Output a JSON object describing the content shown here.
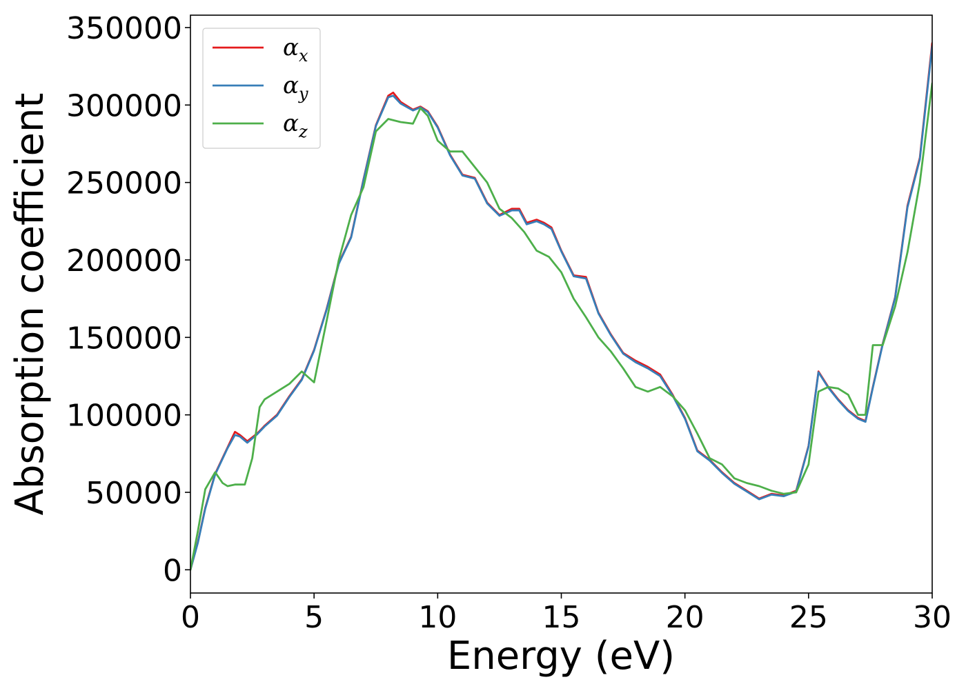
{
  "chart_data": {
    "type": "line",
    "title": "",
    "xlabel": "Energy (eV)",
    "ylabel": "Absorption coefficient",
    "xlim": [
      0,
      30
    ],
    "ylim": [
      -15000,
      358000
    ],
    "xticks": [
      0,
      5,
      10,
      15,
      20,
      25,
      30
    ],
    "xtick_labels": [
      "0",
      "5",
      "10",
      "15",
      "20",
      "25",
      "30"
    ],
    "yticks": [
      0,
      50000,
      100000,
      150000,
      200000,
      250000,
      300000,
      350000
    ],
    "ytick_labels": [
      "0",
      "50000",
      "100000",
      "150000",
      "200000",
      "250000",
      "300000",
      "350000"
    ],
    "grid": false,
    "legend_position": "top-left",
    "series": [
      {
        "name": "α",
        "name_subscript": "x",
        "color": "#e41a1c",
        "x": [
          0,
          0.3,
          0.6,
          1.0,
          1.5,
          1.8,
          2.0,
          2.3,
          2.7,
          3.0,
          3.5,
          4.0,
          4.5,
          5.0,
          5.5,
          6.0,
          6.5,
          7.0,
          7.5,
          8.0,
          8.2,
          8.5,
          9.0,
          9.3,
          9.6,
          10.0,
          10.5,
          11.0,
          11.5,
          12.0,
          12.5,
          13.0,
          13.3,
          13.6,
          14.0,
          14.3,
          14.6,
          15.0,
          15.5,
          16.0,
          16.5,
          17.0,
          17.5,
          18.0,
          18.5,
          19.0,
          19.5,
          20.0,
          20.5,
          21.0,
          21.5,
          22.0,
          22.5,
          23.0,
          23.5,
          24.0,
          24.5,
          25.0,
          25.4,
          25.8,
          26.2,
          26.6,
          27.0,
          27.3,
          27.6,
          28.0,
          28.5,
          29.0,
          29.5,
          30.0
        ],
        "y": [
          0,
          18000,
          40000,
          62000,
          79000,
          89000,
          87000,
          83000,
          88000,
          93000,
          100000,
          112000,
          123000,
          142000,
          168000,
          198000,
          215000,
          252000,
          287000,
          306000,
          308000,
          302000,
          297000,
          299000,
          296000,
          286000,
          268000,
          255000,
          253000,
          237000,
          229000,
          233000,
          233000,
          224000,
          226000,
          224000,
          221000,
          206000,
          190000,
          189000,
          166000,
          152000,
          140000,
          135000,
          131000,
          126000,
          113000,
          98000,
          77000,
          71000,
          63000,
          56000,
          51000,
          46000,
          49000,
          48000,
          51000,
          80000,
          128000,
          118000,
          110000,
          103000,
          98000,
          96000,
          118000,
          146000,
          176000,
          235000,
          266000,
          340000
        ]
      },
      {
        "name": "α",
        "name_subscript": "y",
        "color": "#377eb8",
        "x": [
          0,
          0.3,
          0.6,
          1.0,
          1.5,
          1.8,
          2.0,
          2.3,
          2.7,
          3.0,
          3.5,
          4.0,
          4.5,
          5.0,
          5.5,
          6.0,
          6.5,
          7.0,
          7.5,
          8.0,
          8.2,
          8.5,
          9.0,
          9.3,
          9.6,
          10.0,
          10.5,
          11.0,
          11.5,
          12.0,
          12.5,
          13.0,
          13.3,
          13.6,
          14.0,
          14.3,
          14.6,
          15.0,
          15.5,
          16.0,
          16.5,
          17.0,
          17.5,
          18.0,
          18.5,
          19.0,
          19.5,
          20.0,
          20.5,
          21.0,
          21.5,
          22.0,
          22.5,
          23.0,
          23.5,
          24.0,
          24.5,
          25.0,
          25.4,
          25.8,
          26.2,
          26.6,
          27.0,
          27.3,
          27.6,
          28.0,
          28.5,
          29.0,
          29.5,
          30.0
        ],
        "y": [
          0,
          17500,
          39500,
          61500,
          78500,
          87000,
          86000,
          82000,
          87500,
          92500,
          99500,
          111500,
          122500,
          141500,
          167500,
          197500,
          214500,
          251500,
          286500,
          305000,
          306000,
          301000,
          296500,
          298500,
          295500,
          285500,
          267500,
          254500,
          252500,
          236500,
          228500,
          232000,
          232000,
          223000,
          225000,
          223000,
          220000,
          205500,
          189500,
          188000,
          165500,
          151500,
          139500,
          134000,
          130000,
          125000,
          112500,
          97500,
          76500,
          70500,
          62500,
          55500,
          50500,
          45500,
          48500,
          47500,
          50500,
          79500,
          127500,
          117500,
          109500,
          102500,
          97500,
          95500,
          117500,
          145500,
          175500,
          234000,
          265000,
          338000
        ]
      },
      {
        "name": "α",
        "name_subscript": "z",
        "color": "#4daf4a",
        "x": [
          0,
          0.3,
          0.6,
          1.0,
          1.3,
          1.5,
          1.8,
          2.2,
          2.5,
          2.8,
          3.0,
          3.5,
          4.0,
          4.5,
          5.0,
          5.5,
          6.0,
          6.5,
          7.0,
          7.5,
          8.0,
          8.5,
          9.0,
          9.3,
          9.6,
          10.0,
          10.5,
          11.0,
          11.5,
          12.0,
          12.5,
          13.0,
          13.5,
          14.0,
          14.5,
          15.0,
          15.5,
          16.0,
          16.5,
          17.0,
          17.5,
          18.0,
          18.5,
          19.0,
          19.5,
          20.0,
          20.5,
          21.0,
          21.5,
          22.0,
          22.5,
          23.0,
          23.5,
          24.0,
          24.5,
          25.0,
          25.4,
          25.8,
          26.2,
          26.6,
          27.0,
          27.3,
          27.6,
          28.0,
          28.5,
          29.0,
          29.5,
          30.0
        ],
        "y": [
          0,
          25000,
          52000,
          63000,
          56000,
          54000,
          55000,
          55000,
          72000,
          105000,
          110000,
          115000,
          120000,
          128000,
          121000,
          160000,
          200000,
          229000,
          247000,
          283000,
          291000,
          289000,
          288000,
          298000,
          293000,
          277000,
          270000,
          270000,
          260000,
          250000,
          233000,
          227000,
          218000,
          206000,
          202000,
          192000,
          175000,
          163000,
          150000,
          141000,
          130000,
          118000,
          115000,
          118000,
          112000,
          103000,
          88000,
          72000,
          68000,
          59000,
          56000,
          54000,
          51000,
          49000,
          50000,
          68000,
          115000,
          118000,
          117000,
          113000,
          100000,
          100000,
          145000,
          145000,
          170000,
          205000,
          250000,
          314000
        ]
      }
    ]
  }
}
